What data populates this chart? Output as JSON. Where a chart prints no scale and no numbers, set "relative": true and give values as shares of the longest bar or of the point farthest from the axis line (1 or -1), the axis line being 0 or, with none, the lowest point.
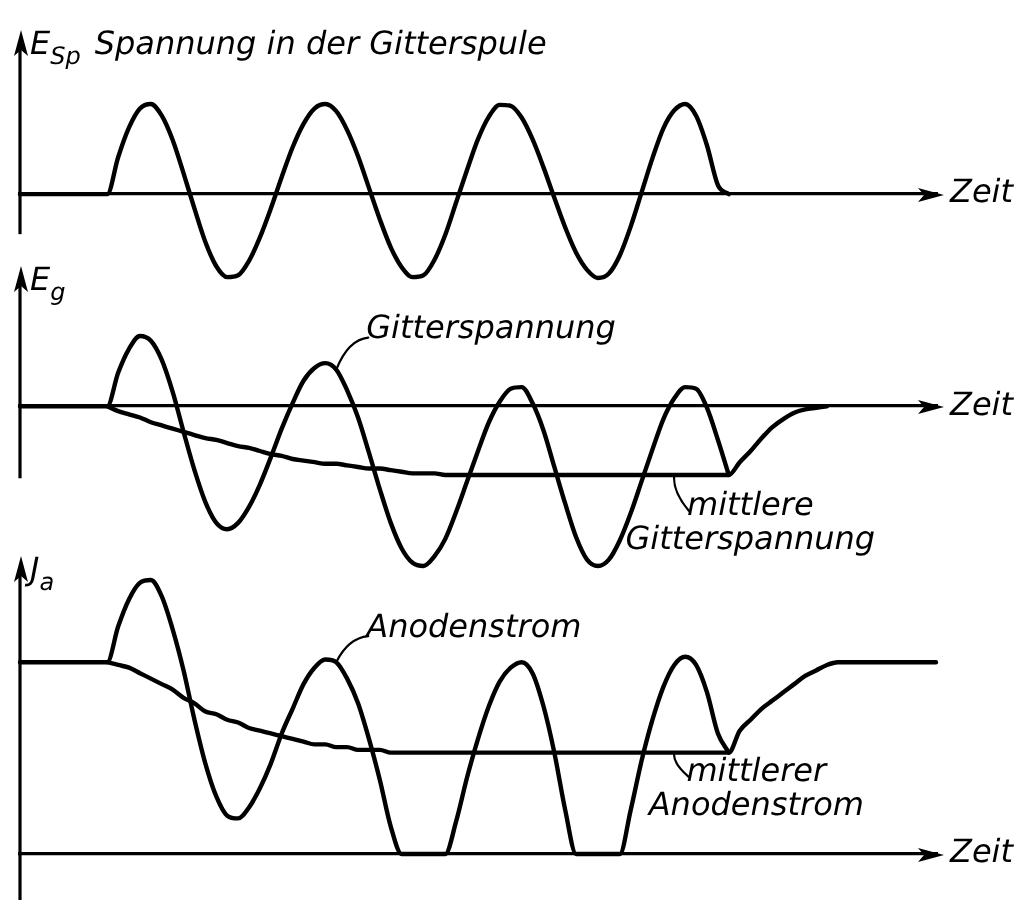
{
  "chart_data": [
    {
      "type": "line",
      "title": "Spannung in der Gitterspule",
      "ylabel": "E$_{Sp}$",
      "xlabel": "Zeit",
      "relative": true,
      "marker": "none",
      "line_style": "solid",
      "categories": [
        null,
        null,
        null,
        null,
        null,
        null,
        null,
        null,
        null,
        null,
        null,
        null,
        null,
        null,
        null,
        null,
        null,
        null,
        null,
        null,
        null,
        null,
        null,
        null,
        null,
        null,
        null,
        null,
        null,
        null,
        null,
        null,
        null,
        null,
        null,
        null,
        null,
        null,
        null,
        null,
        null,
        null,
        null,
        null,
        null,
        null,
        null,
        null,
        null,
        null,
        null,
        null,
        null,
        null,
        null,
        null,
        null,
        null,
        null,
        null,
        null,
        null,
        null,
        null,
        null,
        null,
        null,
        null,
        null,
        null,
        null,
        null,
        null,
        null,
        null,
        null,
        null,
        null,
        null,
        null,
        null,
        null,
        null,
        null,
        null
      ],
      "series": [
        {
          "color": "#000000",
          "values": [
            0,
            0,
            0,
            0,
            0,
            0,
            0,
            0,
            0,
            0.41,
            0.74,
            0.95,
            1,
            0.87,
            0.6,
            0.23,
            -0.16,
            -0.53,
            -0.8,
            -0.92,
            -0.9,
            -0.74,
            -0.48,
            -0.16,
            0.19,
            0.52,
            0.78,
            0.95,
            1,
            0.92,
            0.71,
            0.42,
            0.07,
            -0.28,
            -0.59,
            -0.81,
            -0.92,
            -0.9,
            -0.73,
            -0.45,
            -0.09,
            0.27,
            0.61,
            0.86,
            0.99,
            0.98,
            0.85,
            0.61,
            0.3,
            -0.04,
            -0.37,
            -0.65,
            -0.84,
            -0.93,
            -0.88,
            -0.68,
            -0.36,
            0.02,
            0.4,
            0.73,
            0.93,
            1,
            0.87,
            0.54,
            0.1,
            0,
            null,
            null,
            null,
            null,
            null,
            null,
            null,
            null,
            null,
            null,
            null,
            null,
            null,
            null,
            null,
            null,
            null,
            null,
            null
          ]
        }
      ]
    },
    {
      "type": "line",
      "ylabel": "E$_{g}$",
      "xlabel": "Zeit",
      "relative": true,
      "marker": "none",
      "line_style": "solid",
      "categories": [
        null,
        null,
        null,
        null,
        null,
        null,
        null,
        null,
        null,
        null,
        null,
        null,
        null,
        null,
        null,
        null,
        null,
        null,
        null,
        null,
        null,
        null,
        null,
        null,
        null,
        null,
        null,
        null,
        null,
        null,
        null,
        null,
        null,
        null,
        null,
        null,
        null,
        null,
        null,
        null,
        null,
        null,
        null,
        null,
        null,
        null,
        null,
        null,
        null,
        null,
        null,
        null,
        null,
        null,
        null,
        null,
        null,
        null,
        null,
        null,
        null,
        null,
        null,
        null,
        null,
        null,
        null,
        null,
        null,
        null,
        null,
        null,
        null,
        null,
        null,
        null,
        null,
        null,
        null,
        null,
        null,
        null,
        null,
        null,
        null
      ],
      "series": [
        {
          "name": "Gitterspannung",
          "color": "#000000",
          "values": [
            0,
            0,
            0,
            0,
            0,
            0,
            0,
            0,
            0,
            0.21,
            0.36,
            0.44,
            0.41,
            0.29,
            0.09,
            -0.16,
            -0.4,
            -0.6,
            -0.73,
            -0.77,
            -0.73,
            -0.63,
            -0.49,
            -0.32,
            -0.14,
            0.02,
            0.16,
            0.24,
            0.27,
            0.23,
            0.1,
            -0.07,
            -0.29,
            -0.52,
            -0.73,
            -0.89,
            -0.98,
            -1,
            -0.94,
            -0.83,
            -0.66,
            -0.47,
            -0.28,
            -0.1,
            0.03,
            0.11,
            0.12,
            0.02,
            -0.15,
            -0.38,
            -0.61,
            -0.82,
            -0.96,
            -1,
            -0.96,
            -0.84,
            -0.67,
            -0.47,
            -0.27,
            -0.08,
            0.05,
            0.12,
            0.11,
            -0.01,
            -0.21,
            -0.43,
            null,
            null,
            null,
            null,
            null,
            null,
            null,
            null,
            null,
            null,
            null,
            null,
            null,
            null,
            null,
            null,
            null,
            null,
            null
          ]
        },
        {
          "name": "mittlere Gitterspannung",
          "color": "#000000",
          "values": [
            null,
            null,
            null,
            null,
            null,
            null,
            null,
            null,
            0,
            -0.03,
            -0.05,
            -0.07,
            -0.1,
            -0.12,
            -0.14,
            -0.16,
            -0.18,
            -0.2,
            -0.21,
            -0.23,
            -0.25,
            -0.26,
            -0.28,
            -0.3,
            -0.31,
            -0.33,
            -0.34,
            -0.35,
            -0.36,
            -0.36,
            -0.37,
            -0.38,
            -0.39,
            -0.39,
            -0.4,
            -0.41,
            -0.42,
            -0.42,
            -0.42,
            -0.43,
            -0.43,
            -0.43,
            -0.43,
            -0.43,
            -0.43,
            -0.43,
            -0.43,
            -0.43,
            -0.43,
            -0.43,
            -0.43,
            -0.43,
            -0.43,
            -0.43,
            -0.43,
            -0.43,
            -0.43,
            -0.43,
            -0.43,
            -0.43,
            -0.43,
            -0.43,
            -0.43,
            -0.43,
            -0.43,
            -0.43,
            -0.35,
            -0.28,
            -0.2,
            -0.13,
            -0.08,
            -0.04,
            -0.02,
            -0.01,
            0,
            null,
            null,
            null,
            null,
            null,
            null,
            null,
            null,
            null,
            null
          ]
        }
      ]
    },
    {
      "type": "line",
      "ylabel": "J$_{a}$",
      "xlabel": "Zeit",
      "relative": true,
      "marker": "none",
      "line_style": "solid",
      "categories": [
        null,
        null,
        null,
        null,
        null,
        null,
        null,
        null,
        null,
        null,
        null,
        null,
        null,
        null,
        null,
        null,
        null,
        null,
        null,
        null,
        null,
        null,
        null,
        null,
        null,
        null,
        null,
        null,
        null,
        null,
        null,
        null,
        null,
        null,
        null,
        null,
        null,
        null,
        null,
        null,
        null,
        null,
        null,
        null,
        null,
        null,
        null,
        null,
        null,
        null,
        null,
        null,
        null,
        null,
        null,
        null,
        null,
        null,
        null,
        null,
        null,
        null,
        null,
        null,
        null,
        null,
        null,
        null,
        null,
        null,
        null,
        null,
        null,
        null,
        null,
        null,
        null,
        null,
        null,
        null,
        null,
        null,
        null,
        null,
        null
      ],
      "series": [
        {
          "name": "Anodenstrom",
          "color": "#000000",
          "values": [
            0.7,
            0.7,
            0.7,
            0.7,
            0.7,
            0.7,
            0.7,
            0.7,
            0.7,
            0.83,
            0.93,
            0.99,
            1,
            0.94,
            0.82,
            0.67,
            0.49,
            0.33,
            0.21,
            0.14,
            0.13,
            0.17,
            0.24,
            0.33,
            0.44,
            0.53,
            0.62,
            0.68,
            0.71,
            0.7,
            0.64,
            0.55,
            0.42,
            0.27,
            0.1,
            0,
            0,
            0,
            0,
            0,
            0.12,
            0.28,
            0.42,
            0.54,
            0.63,
            0.68,
            0.7,
            0.66,
            0.54,
            0.37,
            0.16,
            0,
            0,
            0,
            0,
            0,
            0.16,
            0.34,
            0.49,
            0.61,
            0.69,
            0.72,
            0.69,
            0.59,
            0.44,
            0.37,
            null,
            null,
            null,
            null,
            null,
            null,
            null,
            null,
            null,
            null,
            null,
            null,
            null,
            null,
            null,
            null,
            null,
            null,
            null
          ]
        },
        {
          "name": "mittlerer Anodenstrom",
          "color": "#000000",
          "values": [
            null,
            null,
            null,
            null,
            null,
            null,
            null,
            null,
            0.7,
            0.69,
            0.68,
            0.66,
            0.64,
            0.62,
            0.6,
            0.57,
            0.55,
            0.52,
            0.51,
            0.49,
            0.48,
            0.46,
            0.45,
            0.44,
            0.43,
            0.42,
            0.41,
            0.4,
            0.4,
            0.39,
            0.39,
            0.38,
            0.38,
            0.38,
            0.37,
            0.37,
            0.37,
            0.37,
            0.37,
            0.37,
            0.37,
            0.37,
            0.37,
            0.37,
            0.37,
            0.37,
            0.37,
            0.37,
            0.37,
            0.37,
            0.37,
            0.37,
            0.37,
            0.37,
            0.37,
            0.37,
            0.37,
            0.37,
            0.37,
            0.37,
            0.37,
            0.37,
            0.37,
            0.37,
            0.37,
            0.37,
            0.45,
            0.49,
            0.53,
            0.56,
            0.59,
            0.62,
            0.65,
            0.67,
            0.69,
            0.7,
            0.7,
            0.7,
            0.7,
            0.7,
            0.7,
            0.7,
            0.7,
            0.7,
            0.7
          ]
        }
      ]
    }
  ]
}
